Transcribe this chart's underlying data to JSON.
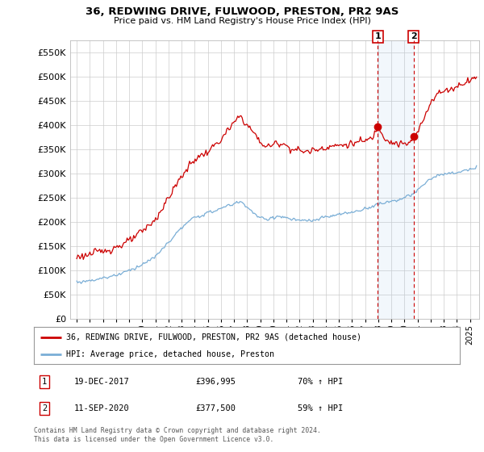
{
  "title": "36, REDWING DRIVE, FULWOOD, PRESTON, PR2 9AS",
  "subtitle": "Price paid vs. HM Land Registry's House Price Index (HPI)",
  "legend_line1": "36, REDWING DRIVE, FULWOOD, PRESTON, PR2 9AS (detached house)",
  "legend_line2": "HPI: Average price, detached house, Preston",
  "transaction1_date": "19-DEC-2017",
  "transaction1_price": "£396,995",
  "transaction1_hpi": "70% ↑ HPI",
  "transaction1_year": 2017.96,
  "transaction1_value": 396995,
  "transaction2_date": "11-SEP-2020",
  "transaction2_price": "£377,500",
  "transaction2_hpi": "59% ↑ HPI",
  "transaction2_year": 2020.7,
  "transaction2_value": 377500,
  "red_color": "#cc0000",
  "blue_color": "#7aaed6",
  "shade_color": "#ddeeff",
  "grid_color": "#cccccc",
  "background_color": "#ffffff",
  "footer_text": "Contains HM Land Registry data © Crown copyright and database right 2024.\nThis data is licensed under the Open Government Licence v3.0.",
  "ylim": [
    0,
    575000
  ],
  "yticks": [
    0,
    50000,
    100000,
    150000,
    200000,
    250000,
    300000,
    350000,
    400000,
    450000,
    500000,
    550000
  ],
  "xlim_start": 1994.5,
  "xlim_end": 2025.7
}
